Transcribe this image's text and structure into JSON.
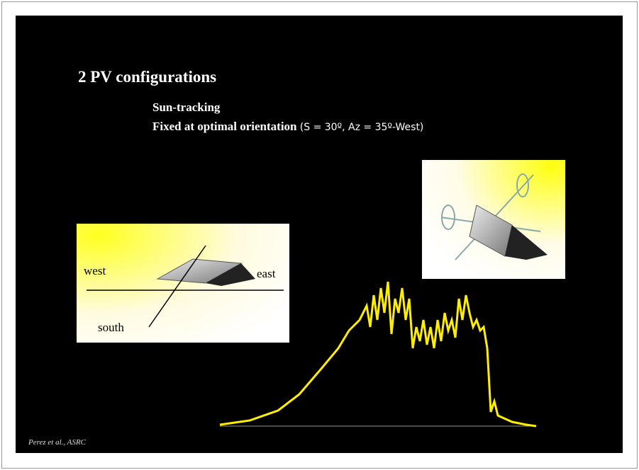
{
  "slide": {
    "title": "2 PV configurations",
    "bullets": [
      "Sun-tracking",
      "Fixed at optimal orientation"
    ],
    "bullet_detail": "(S = 30º, Az = 35º-West)",
    "fixed_diagram": {
      "west": "west",
      "east": "east",
      "south": "south"
    },
    "citation": "Perez et al., ASRC"
  }
}
